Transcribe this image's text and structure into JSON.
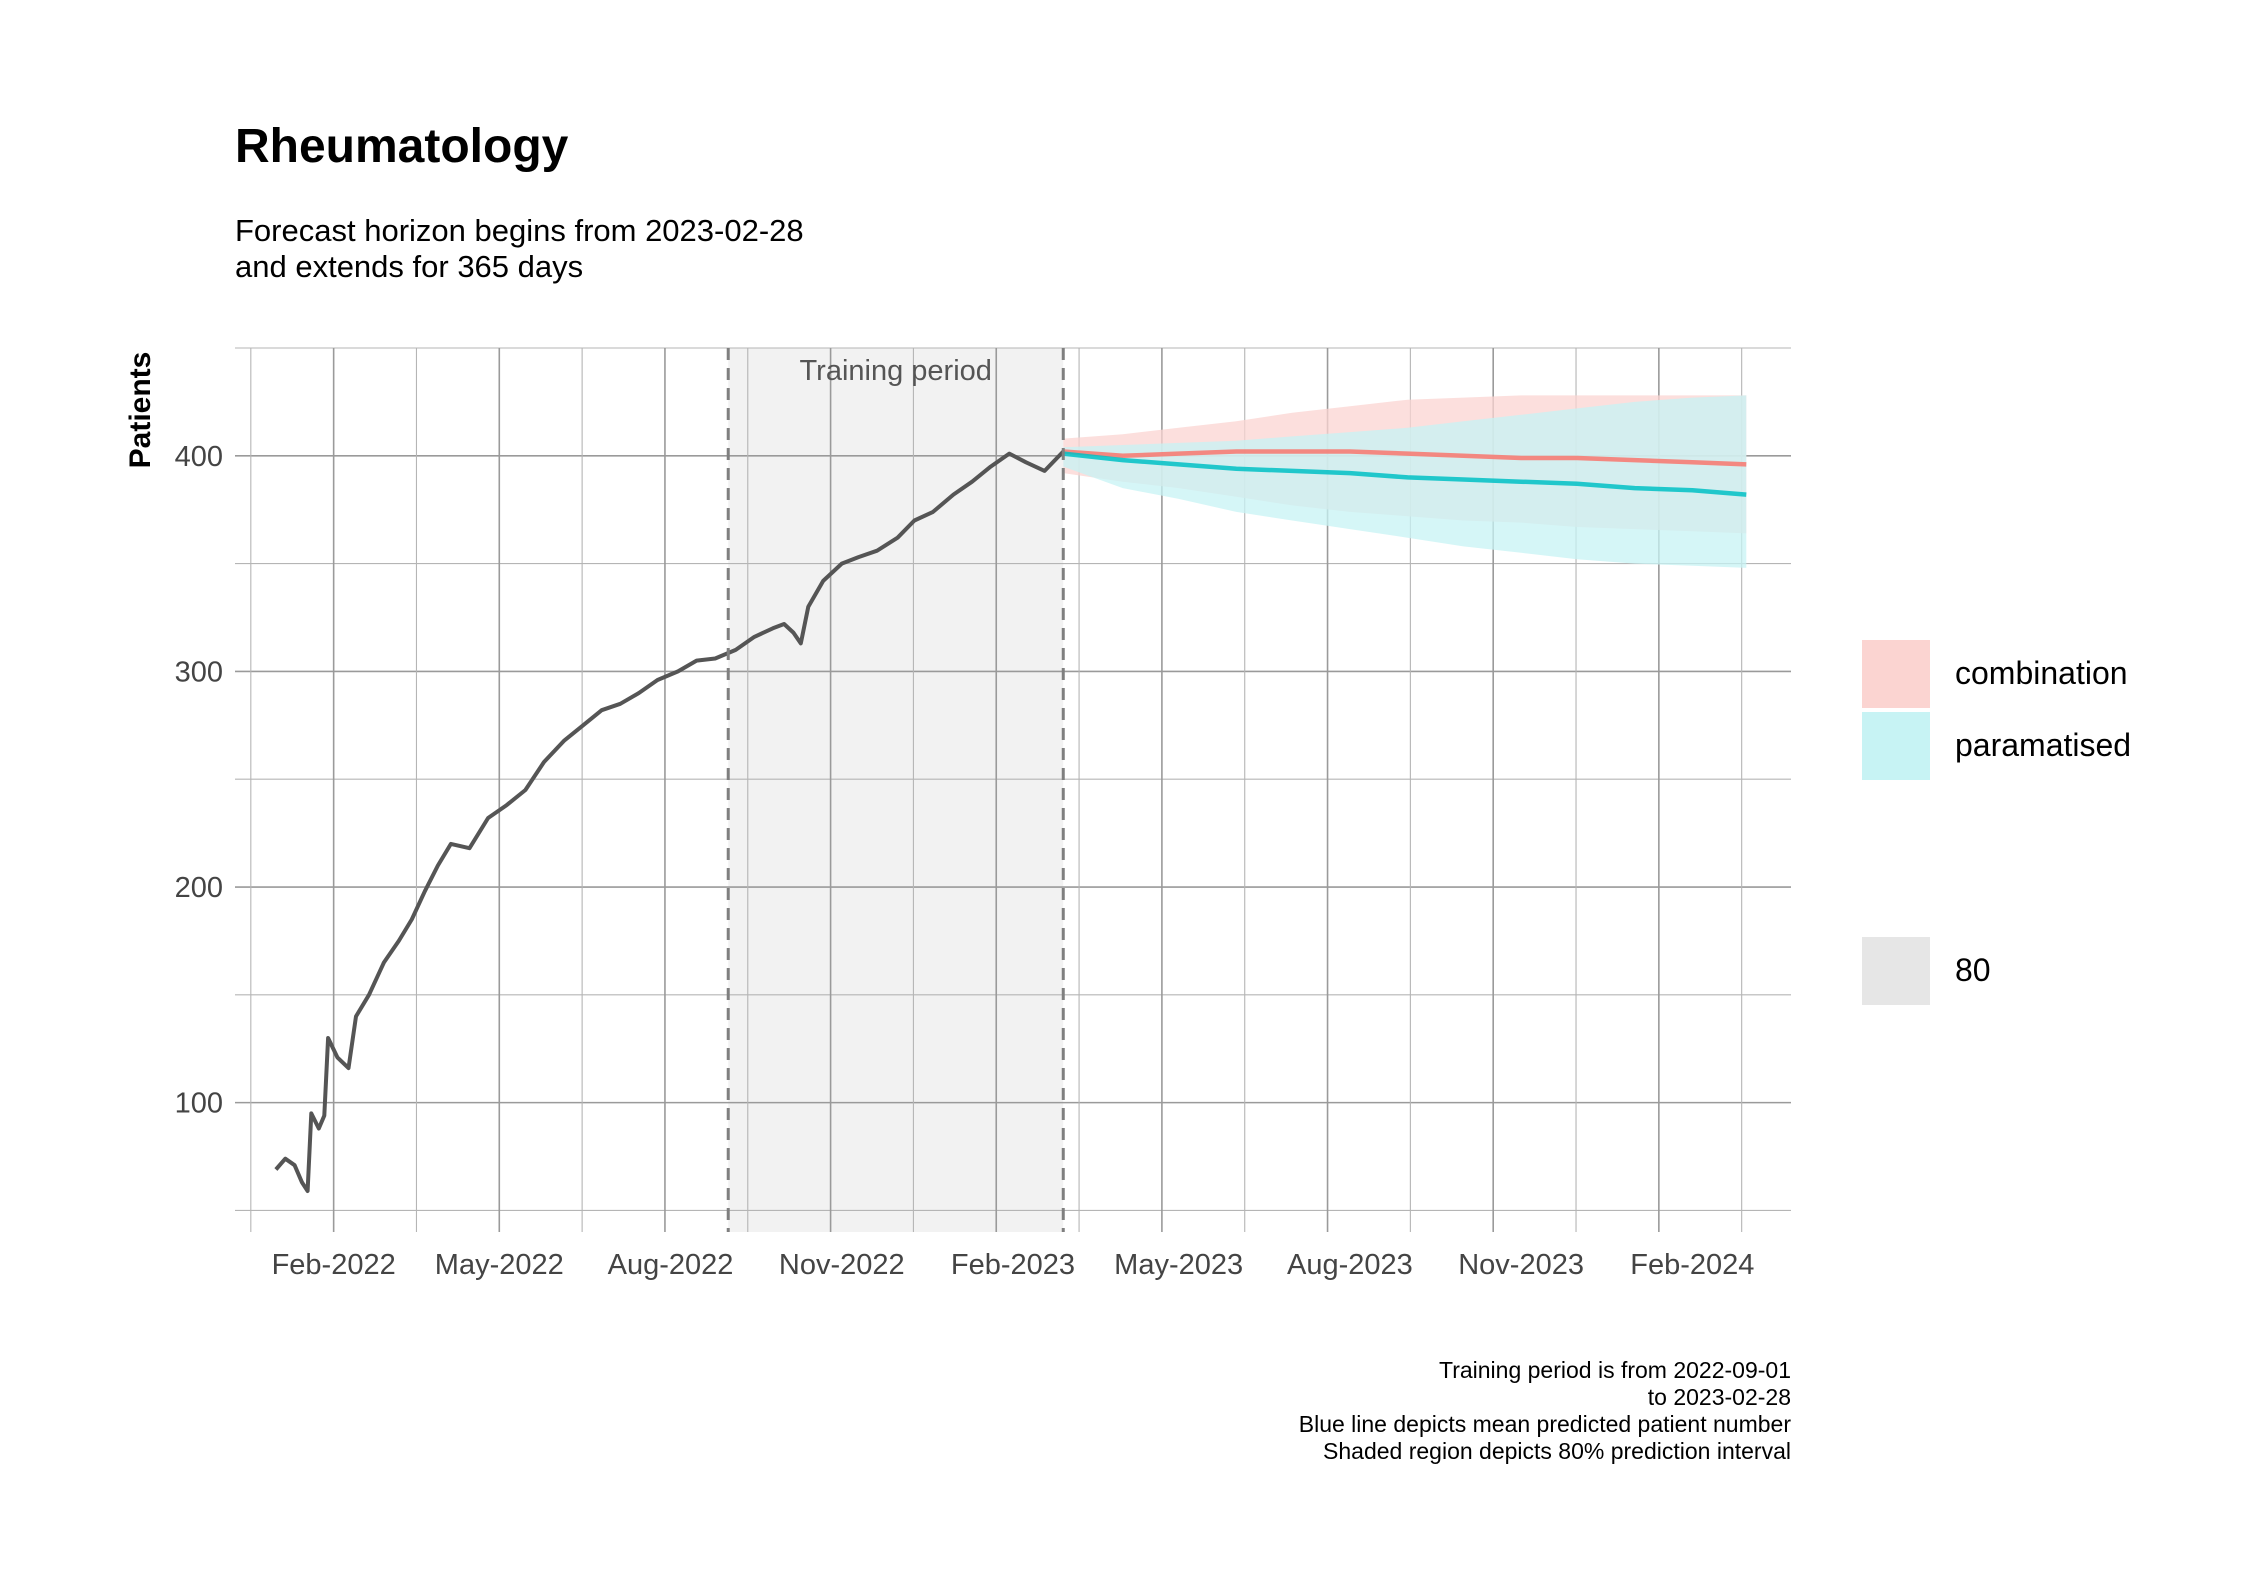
{
  "chart_data": {
    "type": "line",
    "title": "Rheumatology",
    "subtitle_lines": [
      "Forecast horizon begins from 2023-02-28",
      "and extends for 365 days"
    ],
    "ylabel": "Patients",
    "xlabel": "",
    "x_type": "date",
    "xlim": [
      "2021-12-10",
      "2024-03-25"
    ],
    "ylim": [
      40,
      450
    ],
    "grid": true,
    "x_ticks": [
      "2022-02-01",
      "2022-05-01",
      "2022-08-01",
      "2022-11-01",
      "2023-02-01",
      "2023-05-01",
      "2023-08-01",
      "2023-11-01",
      "2024-02-01"
    ],
    "x_tick_labels": [
      "Feb-2022",
      "May-2022",
      "Aug-2022",
      "Nov-2022",
      "Feb-2023",
      "May-2023",
      "Aug-2023",
      "Nov-2023",
      "Feb-2024"
    ],
    "y_ticks": [
      100,
      200,
      300,
      400
    ],
    "y_tick_labels": [
      "100",
      "200",
      "300",
      "400"
    ],
    "training_period": {
      "start": "2022-09-01",
      "end": "2023-02-28",
      "label": "Training period"
    },
    "observed": {
      "name": "",
      "color": "#555555",
      "points": [
        [
          "2022-01-01",
          69
        ],
        [
          "2022-01-06",
          74
        ],
        [
          "2022-01-11",
          71
        ],
        [
          "2022-01-15",
          63
        ],
        [
          "2022-01-18",
          59
        ],
        [
          "2022-01-20",
          95
        ],
        [
          "2022-01-24",
          88
        ],
        [
          "2022-01-27",
          94
        ],
        [
          "2022-01-29",
          130
        ],
        [
          "2022-02-03",
          121
        ],
        [
          "2022-02-09",
          116
        ],
        [
          "2022-02-13",
          140
        ],
        [
          "2022-02-20",
          150
        ],
        [
          "2022-02-28",
          165
        ],
        [
          "2022-03-08",
          175
        ],
        [
          "2022-03-15",
          185
        ],
        [
          "2022-03-22",
          198
        ],
        [
          "2022-03-29",
          210
        ],
        [
          "2022-04-05",
          220
        ],
        [
          "2022-04-15",
          218
        ],
        [
          "2022-04-25",
          232
        ],
        [
          "2022-05-05",
          238
        ],
        [
          "2022-05-15",
          245
        ],
        [
          "2022-05-25",
          258
        ],
        [
          "2022-06-05",
          268
        ],
        [
          "2022-06-15",
          275
        ],
        [
          "2022-06-25",
          282
        ],
        [
          "2022-07-05",
          285
        ],
        [
          "2022-07-15",
          290
        ],
        [
          "2022-07-25",
          296
        ],
        [
          "2022-08-05",
          300
        ],
        [
          "2022-08-15",
          305
        ],
        [
          "2022-08-25",
          306
        ],
        [
          "2022-09-05",
          310
        ],
        [
          "2022-09-15",
          316
        ],
        [
          "2022-09-25",
          320
        ],
        [
          "2022-10-01",
          322
        ],
        [
          "2022-10-06",
          318
        ],
        [
          "2022-10-10",
          313
        ],
        [
          "2022-10-14",
          330
        ],
        [
          "2022-10-22",
          342
        ],
        [
          "2022-11-01",
          350
        ],
        [
          "2022-11-10",
          353
        ],
        [
          "2022-11-20",
          356
        ],
        [
          "2022-12-01",
          362
        ],
        [
          "2022-12-10",
          370
        ],
        [
          "2022-12-20",
          374
        ],
        [
          "2022-12-31",
          382
        ],
        [
          "2023-01-10",
          388
        ],
        [
          "2023-01-20",
          395
        ],
        [
          "2023-01-30",
          401
        ],
        [
          "2023-02-08",
          397
        ],
        [
          "2023-02-18",
          393
        ],
        [
          "2023-02-28",
          402
        ]
      ]
    },
    "series": [
      {
        "name": "combination",
        "color": "#f8766d",
        "fill_color": "#fbd4d1",
        "x": [
          "2023-02-28",
          "2023-04-01",
          "2023-05-01",
          "2023-06-01",
          "2023-07-01",
          "2023-08-01",
          "2023-09-01",
          "2023-10-01",
          "2023-11-01",
          "2023-12-01",
          "2024-01-01",
          "2024-02-01",
          "2024-03-01"
        ],
        "mean": [
          402,
          400,
          401,
          402,
          402,
          402,
          401,
          400,
          399,
          399,
          398,
          397,
          396
        ],
        "lower": [
          392,
          388,
          385,
          381,
          377,
          374,
          372,
          370,
          369,
          367,
          366,
          365,
          364
        ],
        "upper": [
          408,
          410,
          413,
          416,
          420,
          423,
          426,
          427,
          428,
          428,
          428,
          428,
          428
        ]
      },
      {
        "name": "paramatised",
        "color": "#00bfc4",
        "fill_color": "#c7f3f4",
        "x": [
          "2023-02-28",
          "2023-04-01",
          "2023-05-01",
          "2023-06-01",
          "2023-07-01",
          "2023-08-01",
          "2023-09-01",
          "2023-10-01",
          "2023-11-01",
          "2023-12-01",
          "2024-01-01",
          "2024-02-01",
          "2024-03-01"
        ],
        "mean": [
          401,
          398,
          396,
          394,
          393,
          392,
          390,
          389,
          388,
          387,
          385,
          384,
          382
        ],
        "lower": [
          395,
          385,
          380,
          374,
          370,
          366,
          362,
          358,
          355,
          352,
          350,
          349,
          348
        ],
        "upper": [
          404,
          405,
          406,
          407,
          409,
          411,
          413,
          416,
          419,
          422,
          425,
          427,
          428
        ]
      }
    ],
    "legend": {
      "position": "right",
      "items": [
        {
          "label": "combination",
          "color": "#fbd4d1"
        },
        {
          "label": "paramatised",
          "color": "#c7f3f4"
        }
      ],
      "level_items": [
        {
          "label": "80",
          "color": "#e6e6e6"
        }
      ]
    },
    "caption_lines": [
      "Training period is from 2022-09-01",
      "to 2023-02-28",
      "Blue line depicts mean predicted patient number",
      "Shaded region depicts 80% prediction interval"
    ]
  }
}
